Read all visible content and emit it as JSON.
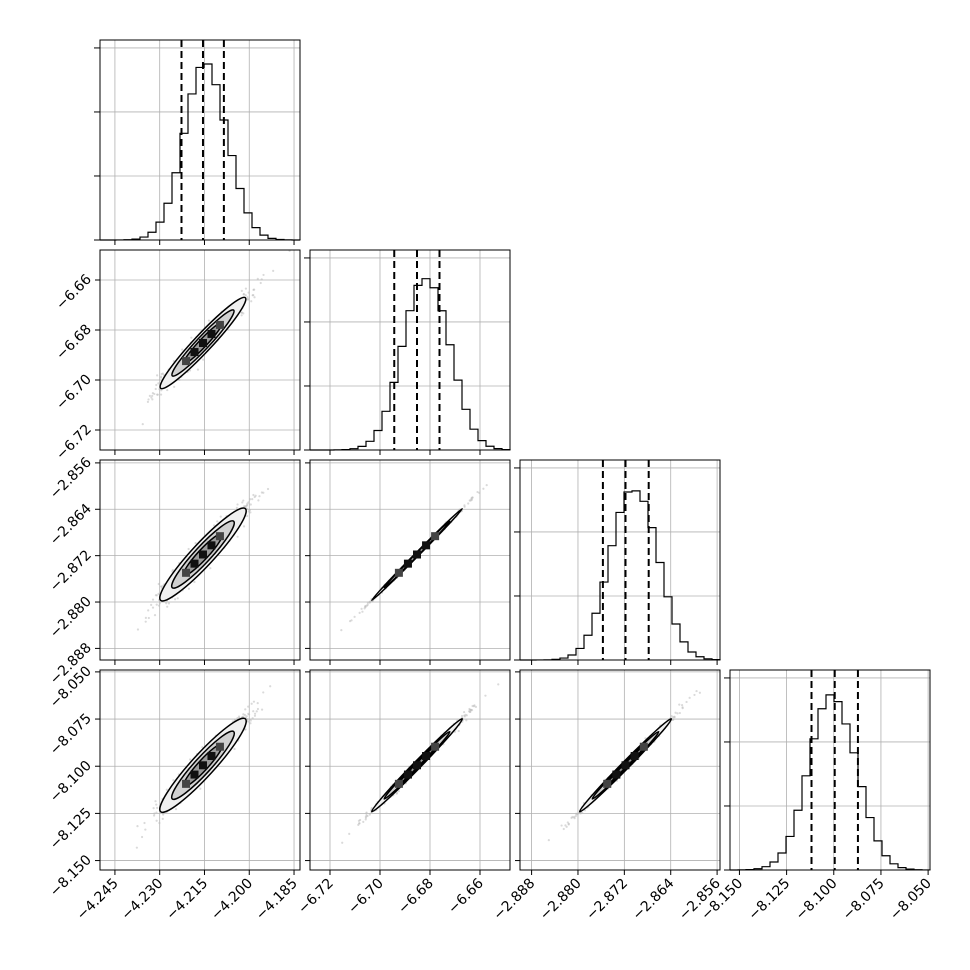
{
  "chart_data": {
    "type": "corner",
    "title": "",
    "grid": true,
    "parameters": [
      {
        "label": "",
        "range": [
          -4.25,
          -4.183
        ],
        "ticks": [
          "−4.245",
          "−4.230",
          "−4.215",
          "−4.200",
          "−4.185"
        ],
        "tick_values": [
          -4.245,
          -4.23,
          -4.215,
          -4.2,
          -4.185
        ],
        "median": -4.2155,
        "q16": -4.2227,
        "q84": -4.2085,
        "hist_peak_x": -4.2145
      },
      {
        "label": "",
        "range": [
          -6.728,
          -6.648
        ],
        "ticks": [
          "−6.72",
          "−6.70",
          "−6.68",
          "−6.66"
        ],
        "tick_values": [
          -6.72,
          -6.7,
          -6.68,
          -6.66
        ],
        "median": -6.6852,
        "q16": -6.6943,
        "q84": -6.6762,
        "hist_peak_x": -6.6815
      },
      {
        "label": "",
        "range": [
          -2.89,
          -2.8555
        ],
        "ticks": [
          "−2.888",
          "−2.880",
          "−2.872",
          "−2.864",
          "−2.856"
        ],
        "tick_values": [
          -2.888,
          -2.88,
          -2.872,
          -2.864,
          -2.856
        ],
        "median": -2.8718,
        "q16": -2.8757,
        "q84": -2.8678,
        "hist_peak_x": -2.8703
      },
      {
        "label": "",
        "range": [
          -8.155,
          -8.049
        ],
        "ticks": [
          "−8.150",
          "−8.125",
          "−8.100",
          "−8.075",
          "−8.050"
        ],
        "tick_values": [
          -8.15,
          -8.125,
          -8.1,
          -8.075,
          -8.05
        ],
        "median": -8.0995,
        "q16": -8.1118,
        "q84": -8.0872,
        "hist_peak_x": -8.1005
      }
    ],
    "colors": {
      "line": "#000000",
      "grid": "#b0b0b0",
      "points": "#bcbcbc"
    }
  }
}
